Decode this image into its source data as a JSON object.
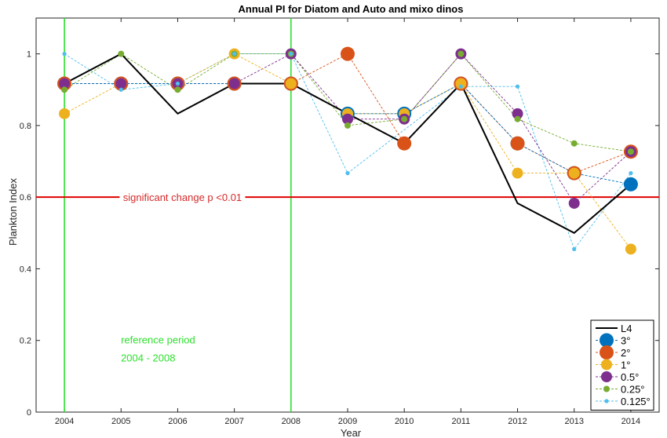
{
  "chart_data": {
    "type": "line",
    "title": "Annual PI for Diatom and Auto and mixo dinos",
    "xlabel": "Year",
    "ylabel": "Plankton Index",
    "x": [
      2004,
      2005,
      2006,
      2007,
      2008,
      2009,
      2010,
      2011,
      2012,
      2013,
      2014
    ],
    "xlim": [
      2003.5,
      2014.5
    ],
    "ylim": [
      0,
      1.1
    ],
    "yticks": [
      0,
      0.2,
      0.4,
      0.6,
      0.8,
      1
    ],
    "series": [
      {
        "name": "L4",
        "color": "#000000",
        "style": "solid",
        "marker": "none",
        "values": [
          0.917,
          1.0,
          0.833,
          0.917,
          0.917,
          0.833,
          0.75,
          0.917,
          0.583,
          0.5,
          0.636
        ]
      },
      {
        "name": "3°",
        "color": "#0072bd",
        "style": "dashed",
        "marker": "large",
        "values": [
          0.917,
          0.917,
          0.917,
          0.917,
          0.917,
          0.833,
          0.833,
          0.917,
          0.75,
          0.667,
          0.636
        ]
      },
      {
        "name": "2°",
        "color": "#d95319",
        "style": "dashed",
        "marker": "large",
        "values": [
          0.917,
          0.917,
          0.917,
          0.917,
          0.917,
          1.0,
          0.75,
          0.917,
          0.75,
          0.667,
          0.727
        ]
      },
      {
        "name": "1°",
        "color": "#edb120",
        "style": "dashed",
        "marker": "medium",
        "values": [
          0.833,
          0.917,
          0.917,
          1.0,
          0.917,
          0.833,
          0.833,
          0.917,
          0.667,
          0.667,
          0.455
        ]
      },
      {
        "name": "0.5°",
        "color": "#7e2f8e",
        "style": "dashed",
        "marker": "medium",
        "values": [
          0.917,
          0.917,
          0.917,
          0.917,
          1.0,
          0.818,
          0.818,
          1.0,
          0.833,
          0.583,
          0.727
        ]
      },
      {
        "name": "0.25°",
        "color": "#77ac30",
        "style": "dashed",
        "marker": "small",
        "values": [
          0.9,
          1.0,
          0.9,
          1.0,
          1.0,
          0.8,
          0.818,
          1.0,
          0.818,
          0.75,
          0.727
        ]
      },
      {
        "name": "0.125°",
        "color": "#4dbeee",
        "style": "dashed",
        "marker": "tiny",
        "values": [
          1.0,
          0.9,
          0.917,
          1.0,
          1.0,
          0.667,
          null,
          0.909,
          0.909,
          0.455,
          0.667
        ]
      }
    ],
    "hlines": [
      {
        "y": 0.6,
        "color": "#e00000",
        "label": "significant change p <0.01",
        "label_x": 2006
      }
    ],
    "vlines": [
      {
        "x": 2004,
        "color": "#2ee02e"
      },
      {
        "x": 2008,
        "color": "#2ee02e"
      }
    ],
    "annotations": [
      {
        "text": "reference period",
        "x": 2004.0,
        "y": 0.2
      },
      {
        "text": "2004 - 2008",
        "x": 2004.0,
        "y": 0.15
      }
    ],
    "legend_position": "bottom-right",
    "grid": false
  }
}
